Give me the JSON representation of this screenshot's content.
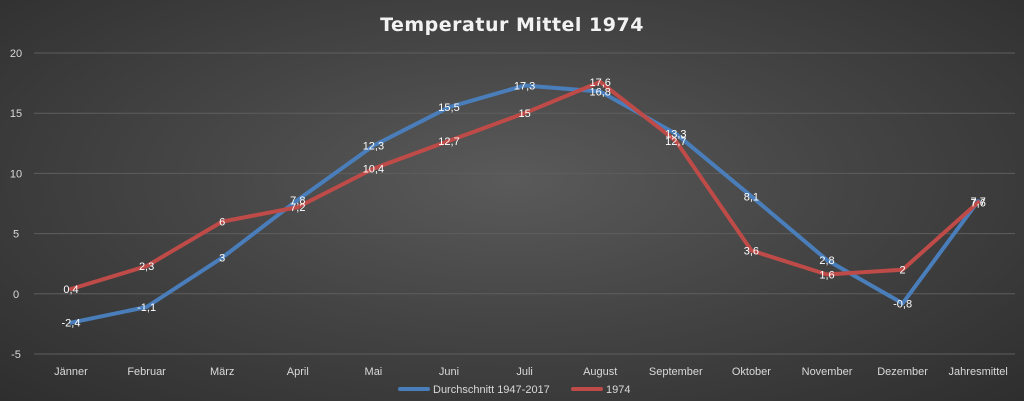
{
  "chart_data": {
    "type": "line",
    "title": "Temperatur Mittel 1974",
    "categories": [
      "Jänner",
      "Februar",
      "März",
      "April",
      "Mai",
      "Juni",
      "Juli",
      "August",
      "September",
      "Oktober",
      "November",
      "Dezember",
      "Jahresmittel"
    ],
    "series": [
      {
        "name": "Durchschnitt 1947-2017",
        "color": "#4a7ebb",
        "values": [
          -2.4,
          -1.1,
          3,
          7.8,
          12.3,
          15.5,
          17.3,
          16.8,
          13.3,
          8.1,
          2.8,
          -0.8,
          7.7
        ],
        "labels": [
          "-2,4",
          "-1,1",
          "3",
          "7,8",
          "12,3",
          "15,5",
          "17,3",
          "16,8",
          "13,3",
          "8,1",
          "2,8",
          "-0,8",
          "7,7"
        ]
      },
      {
        "name": "1974",
        "color": "#be4b48",
        "values": [
          0.4,
          2.3,
          6,
          7.2,
          10.4,
          12.7,
          15,
          17.6,
          12.7,
          3.6,
          1.6,
          2,
          7.6
        ],
        "labels": [
          "0,4",
          "2,3",
          "6",
          "7,2",
          "10,4",
          "12,7",
          "15",
          "17,6",
          "12,7",
          "3,6",
          "1,6",
          "2",
          "7,6"
        ]
      }
    ],
    "ylim": [
      -5,
      20
    ],
    "yticks": [
      -5,
      0,
      5,
      10,
      15,
      20
    ],
    "ytick_labels": [
      "-5",
      "0",
      "5",
      "10",
      "15",
      "20"
    ],
    "grid": true,
    "legend_position": "bottom"
  }
}
